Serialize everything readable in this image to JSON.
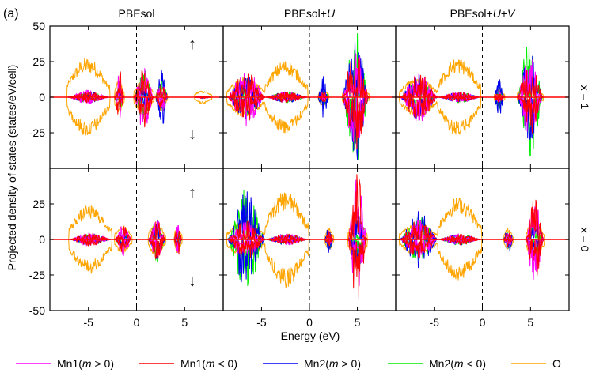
{
  "figure": {
    "panel_label": "(a)",
    "ylabel": "Projected density of states (states/eV/cell)",
    "xlabel": "Energy (eV)",
    "spin_up_arrow": "↑",
    "spin_down_arrow": "↓"
  },
  "legend": [
    {
      "label": "Mn1(m > 0)",
      "color": "#ff00ff"
    },
    {
      "label": "Mn1(m < 0)",
      "color": "#ff0000"
    },
    {
      "label": "Mn2(m > 0)",
      "color": "#0000ee"
    },
    {
      "label": "Mn2(m < 0)",
      "color": "#00ee00"
    },
    {
      "label": "O",
      "color": "#ffa500"
    }
  ],
  "chart_data": {
    "type": "line",
    "columns": [
      "PBEsol",
      "PBEsol+U",
      "PBEsol+U+V"
    ],
    "rows": [
      "x = 1",
      "x = 0"
    ],
    "xlim": [
      -9,
      9
    ],
    "xticks": [
      -5,
      0,
      5
    ],
    "xtick_labels": [
      "-5",
      "0",
      "5"
    ],
    "fermi_level": 0,
    "row_axes": [
      {
        "row": "x = 1",
        "ylim": [
          -50,
          50
        ],
        "yticks": [
          50,
          25,
          0,
          -25
        ],
        "ytick_labels": [
          "50",
          "25",
          "0",
          "-25"
        ]
      },
      {
        "row": "x = 0",
        "ylim": [
          -50,
          50
        ],
        "yticks": [
          25,
          0,
          -25,
          -50
        ],
        "ytick_labels": [
          "25",
          "0",
          "-25",
          "-50"
        ]
      }
    ],
    "series": [
      "Mn1(m > 0)",
      "Mn1(m < 0)",
      "Mn2(m > 0)",
      "Mn2(m < 0)",
      "O"
    ],
    "panels": [
      {
        "column": "PBEsol",
        "row": "x = 1",
        "bands": [
          {
            "range": [
              -7.2,
              -2.8
            ],
            "O": 28,
            "Mn1up": 5,
            "Mn1dn": 4,
            "Mn2up": 4,
            "Mn2dn": 4
          },
          {
            "range": [
              -2.3,
              -1.3
            ],
            "O": 12,
            "Mn1up": 16,
            "Mn1dn": 22,
            "Mn2up": 8,
            "Mn2dn": 10
          },
          {
            "range": [
              -0.3,
              1.8
            ],
            "O": 12,
            "Mn1up": 24,
            "Mn1dn": 22,
            "Mn2up": 10,
            "Mn2dn": 20
          },
          {
            "range": [
              2.0,
              3.2
            ],
            "O": 8,
            "Mn1up": 14,
            "Mn1dn": 10,
            "Mn2up": 26,
            "Mn2dn": 16
          },
          {
            "range": [
              6.0,
              7.8
            ],
            "O": 5,
            "Mn1up": 1,
            "Mn1dn": 1,
            "Mn2up": 1,
            "Mn2dn": 1
          }
        ]
      },
      {
        "column": "PBEsol+U",
        "row": "x = 1",
        "bands": [
          {
            "range": [
              -8.6,
              -4.6
            ],
            "O": 14,
            "Mn1up": 20,
            "Mn1dn": 18,
            "Mn2up": 16,
            "Mn2dn": 12
          },
          {
            "range": [
              -4.6,
              -0.2
            ],
            "O": 26,
            "Mn1up": 4,
            "Mn1dn": 4,
            "Mn2up": 4,
            "Mn2dn": 4
          },
          {
            "range": [
              0.9,
              2.0
            ],
            "O": 6,
            "Mn1up": 4,
            "Mn1dn": 4,
            "Mn2up": 16,
            "Mn2dn": 8
          },
          {
            "range": [
              3.4,
              6.2
            ],
            "O": 8,
            "Mn1up": 38,
            "Mn1dn": 40,
            "Mn2up": 46,
            "Mn2dn": 48
          }
        ]
      },
      {
        "column": "PBEsol+U+V",
        "row": "x = 1",
        "bands": [
          {
            "range": [
              -8.6,
              -4.6
            ],
            "O": 14,
            "Mn1up": 18,
            "Mn1dn": 18,
            "Mn2up": 16,
            "Mn2dn": 12
          },
          {
            "range": [
              -4.6,
              -0.2
            ],
            "O": 28,
            "Mn1up": 4,
            "Mn1dn": 4,
            "Mn2up": 4,
            "Mn2dn": 4
          },
          {
            "range": [
              1.2,
              2.3
            ],
            "O": 6,
            "Mn1up": 4,
            "Mn1dn": 4,
            "Mn2up": 14,
            "Mn2dn": 8
          },
          {
            "range": [
              3.6,
              6.3
            ],
            "O": 8,
            "Mn1up": 30,
            "Mn1dn": 28,
            "Mn2up": 32,
            "Mn2dn": 44
          }
        ]
      },
      {
        "column": "PBEsol",
        "row": "x = 0",
        "bands": [
          {
            "range": [
              -7.0,
              -2.6
            ],
            "O": 24,
            "Mn1up": 5,
            "Mn1dn": 5,
            "Mn2up": 4,
            "Mn2dn": 4
          },
          {
            "range": [
              -2.3,
              -0.5
            ],
            "O": 10,
            "Mn1up": 12,
            "Mn1dn": 10,
            "Mn2up": 6,
            "Mn2dn": 6
          },
          {
            "range": [
              1.2,
              3.0
            ],
            "O": 12,
            "Mn1up": 14,
            "Mn1dn": 14,
            "Mn2up": 14,
            "Mn2dn": 16
          },
          {
            "range": [
              3.9,
              4.7
            ],
            "O": 10,
            "Mn1up": 10,
            "Mn1dn": 12,
            "Mn2up": 8,
            "Mn2dn": 8
          }
        ]
      },
      {
        "column": "PBEsol+U",
        "row": "x = 0",
        "bands": [
          {
            "range": [
              -8.6,
              -4.6
            ],
            "O": 14,
            "Mn1up": 14,
            "Mn1dn": 14,
            "Mn2up": 34,
            "Mn2dn": 36
          },
          {
            "range": [
              -4.6,
              -0.1
            ],
            "O": 34,
            "Mn1up": 4,
            "Mn1dn": 4,
            "Mn2up": 4,
            "Mn2dn": 4
          },
          {
            "range": [
              1.6,
              2.5
            ],
            "O": 8,
            "Mn1up": 6,
            "Mn1dn": 6,
            "Mn2up": 10,
            "Mn2dn": 8
          },
          {
            "range": [
              4.0,
              6.0
            ],
            "O": 16,
            "Mn1up": 44,
            "Mn1dn": 48,
            "Mn2up": 22,
            "Mn2dn": 12
          }
        ]
      },
      {
        "column": "PBEsol+U+V",
        "row": "x = 0",
        "bands": [
          {
            "range": [
              -8.6,
              -4.6
            ],
            "O": 12,
            "Mn1up": 14,
            "Mn1dn": 14,
            "Mn2up": 20,
            "Mn2dn": 16
          },
          {
            "range": [
              -4.6,
              -0.1
            ],
            "O": 30,
            "Mn1up": 4,
            "Mn1dn": 4,
            "Mn2up": 4,
            "Mn2dn": 4
          },
          {
            "range": [
              2.2,
              3.2
            ],
            "O": 8,
            "Mn1up": 6,
            "Mn1dn": 6,
            "Mn2up": 10,
            "Mn2dn": 8
          },
          {
            "range": [
              4.5,
              6.4
            ],
            "O": 14,
            "Mn1up": 34,
            "Mn1dn": 32,
            "Mn2up": 18,
            "Mn2dn": 10
          }
        ]
      }
    ]
  }
}
